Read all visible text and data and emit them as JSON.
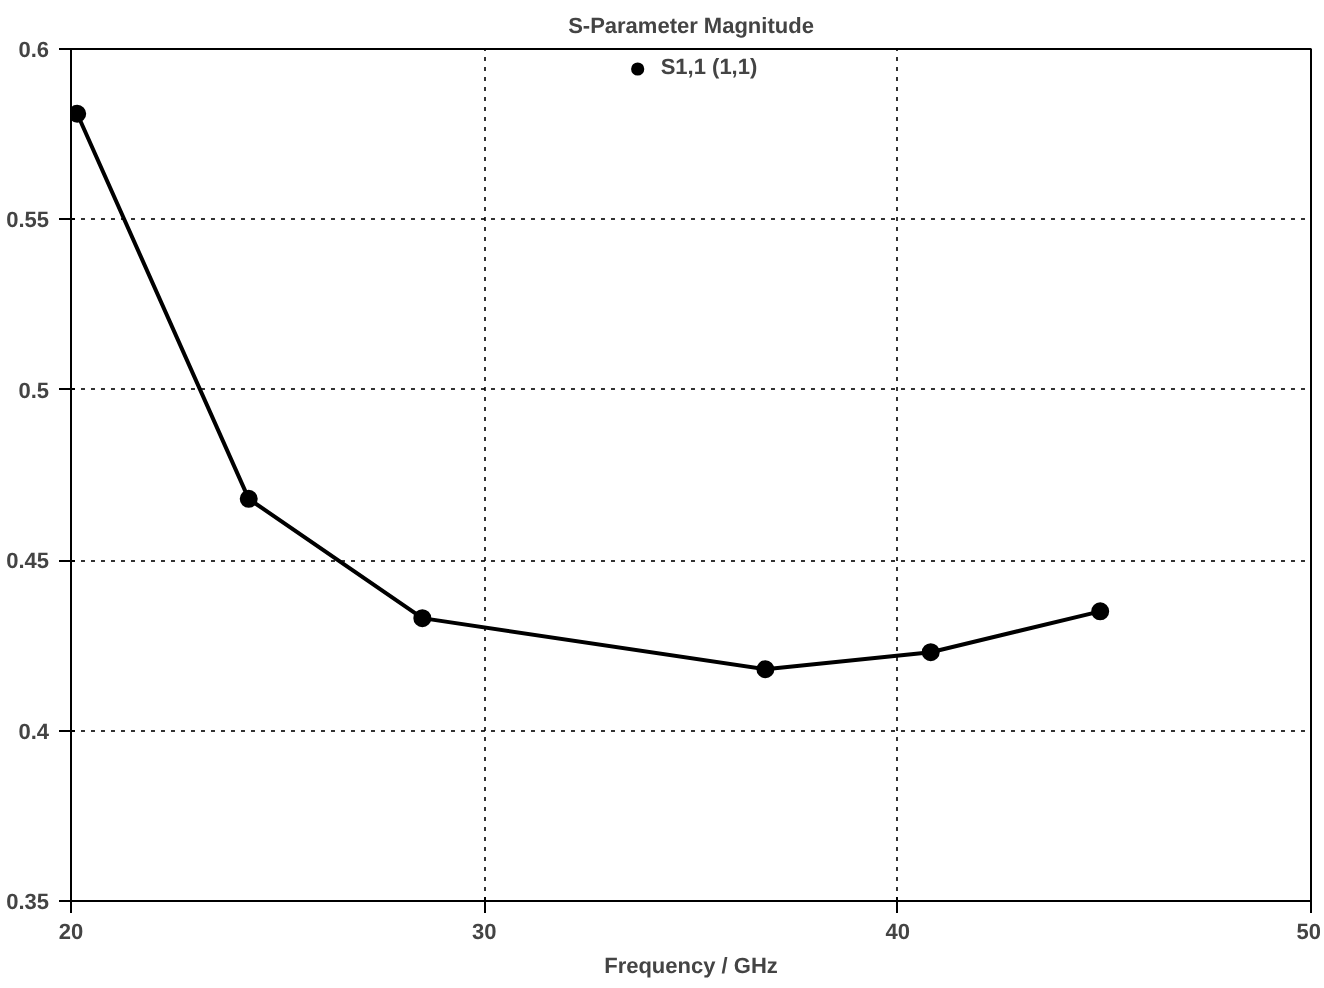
{
  "chart_data": {
    "type": "line",
    "title": "S-Parameter Magnitude",
    "xlabel": "Frequency / GHz",
    "x": [
      20.15,
      24.3,
      28.5,
      36.8,
      40.8,
      44.9
    ],
    "series": [
      {
        "name": "S1,1 (1,1)",
        "color": "#000000",
        "values": [
          0.581,
          0.468,
          0.433,
          0.418,
          0.423,
          0.435
        ]
      }
    ],
    "xlim": [
      20,
      50
    ],
    "xticks": [
      20,
      30,
      40,
      50
    ],
    "ylim": [
      0.35,
      0.6
    ],
    "yticks": [
      0.35,
      0.4,
      0.45,
      0.5,
      0.55,
      0.6
    ],
    "grid": true,
    "legend": "top",
    "marker": "circle",
    "line_style": "solid"
  }
}
